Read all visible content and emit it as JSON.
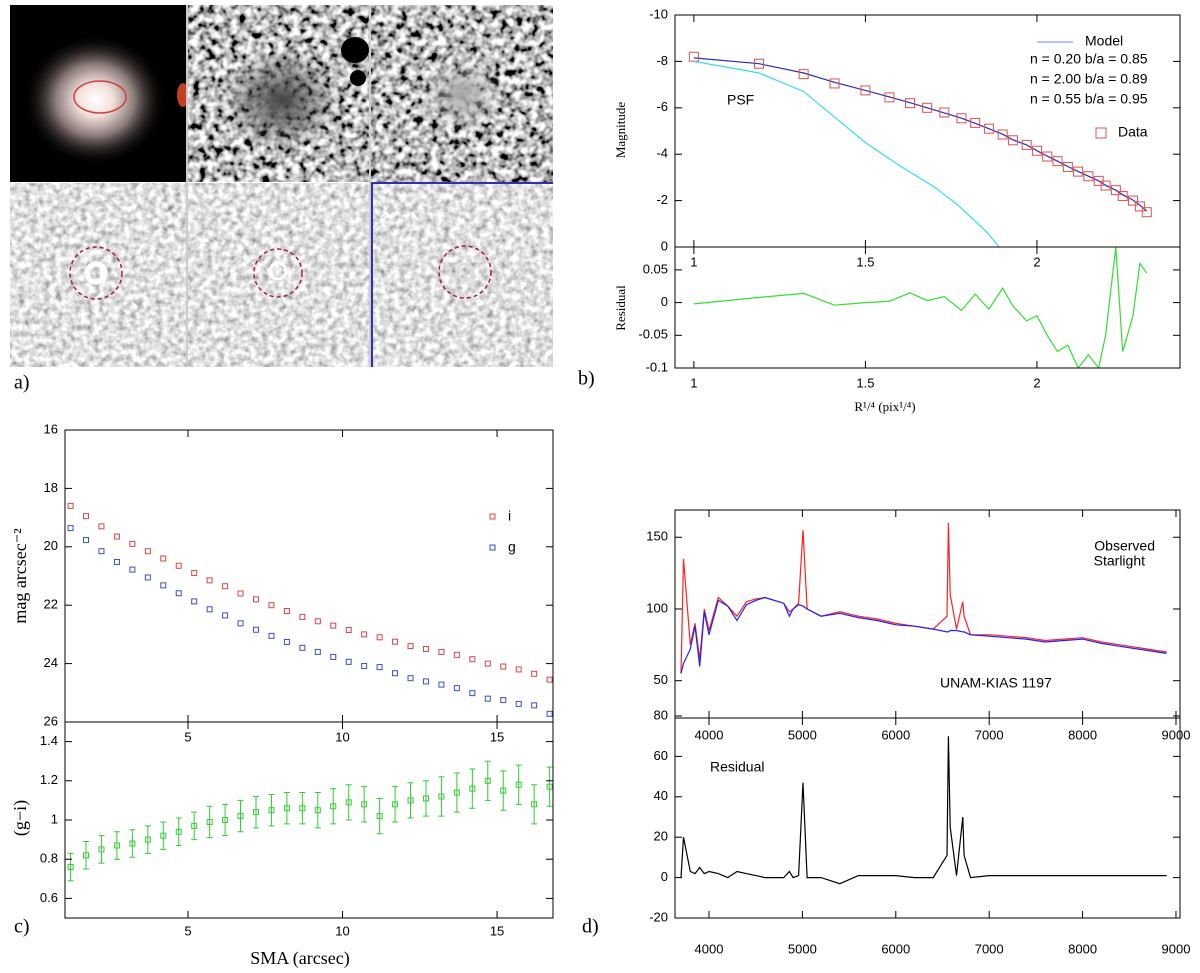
{
  "images": {
    "panel_label": "a)"
  },
  "chart_data": [
    {
      "type": "line",
      "panel_label": "b)",
      "ylabel": "Magnitude",
      "xlim": [
        0.945,
        2.417
      ],
      "xticks": [
        1,
        1.5,
        2
      ],
      "ylim": [
        0,
        -10
      ],
      "yticks": [
        0,
        -2,
        -4,
        -6,
        -8,
        -10
      ],
      "x": [
        1,
        1.19,
        1.32,
        1.41,
        1.5,
        1.57,
        1.63,
        1.68,
        1.73,
        1.78,
        1.82,
        1.86,
        1.9,
        1.93,
        1.97,
        2.0,
        2.03,
        2.06,
        2.09,
        2.12,
        2.15,
        2.18,
        2.2,
        2.23,
        2.25,
        2.28,
        2.3,
        2.32
      ],
      "series": [
        {
          "name": "Model",
          "color": "#2c2cb4",
          "style": "line",
          "values": [
            -8.15,
            -7.9,
            -7.5,
            -7.1,
            -6.75,
            -6.47,
            -6.22,
            -6.0,
            -5.78,
            -5.55,
            -5.33,
            -5.1,
            -4.86,
            -4.62,
            -4.4,
            -4.15,
            -3.92,
            -3.7,
            -3.47,
            -3.26,
            -3.05,
            -2.85,
            -2.66,
            -2.45,
            -2.25,
            -2.02,
            -1.8,
            -1.55
          ]
        },
        {
          "name": "Data",
          "color": "#e05050",
          "style": "markers",
          "values": [
            -8.2,
            -7.9,
            -7.45,
            -7.05,
            -6.75,
            -6.45,
            -6.2,
            -6.0,
            -5.8,
            -5.55,
            -5.35,
            -5.1,
            -4.85,
            -4.6,
            -4.4,
            -4.15,
            -3.9,
            -3.7,
            -3.45,
            -3.25,
            -3.05,
            -2.85,
            -2.65,
            -2.45,
            -2.2,
            -2.0,
            -1.75,
            -1.5
          ]
        },
        {
          "name": "PSF",
          "color": "#33ddee",
          "style": "line",
          "x": [
            1,
            1.19,
            1.32,
            1.41,
            1.5,
            1.6,
            1.7,
            1.77,
            1.85,
            1.89
          ],
          "values": [
            -8.0,
            -7.5,
            -6.7,
            -5.6,
            -4.5,
            -3.5,
            -2.6,
            -1.8,
            -0.7,
            0
          ]
        }
      ],
      "annotations": [
        {
          "text": "n = 0.20 b/a = 0.85",
          "color": "#1a1aa8"
        },
        {
          "text": "n = 2.00 b/a = 0.89",
          "color": "#1a1aa8"
        },
        {
          "text": "n = 0.55 b/a = 0.95",
          "color": "#1a1aa8"
        }
      ]
    },
    {
      "type": "line",
      "ylabel": "Residual",
      "xlabel": "R¹/⁴ (pix¹/⁴)",
      "xlim": [
        0.945,
        2.417
      ],
      "xticks": [
        1,
        1.5,
        2
      ],
      "ylim": [
        -0.1,
        0.085
      ],
      "yticks": [
        -0.1,
        -0.05,
        0,
        0.05
      ],
      "x": [
        1,
        1.19,
        1.32,
        1.41,
        1.5,
        1.57,
        1.63,
        1.68,
        1.73,
        1.78,
        1.82,
        1.86,
        1.9,
        1.93,
        1.97,
        2.0,
        2.03,
        2.06,
        2.09,
        2.12,
        2.15,
        2.18,
        2.2,
        2.23,
        2.25,
        2.28,
        2.3,
        2.32
      ],
      "series": [
        {
          "color": "#33dd33",
          "style": "line",
          "values": [
            -0.002,
            0.008,
            0.014,
            -0.004,
            0,
            0.002,
            0.015,
            0.003,
            0.009,
            -0.012,
            0.013,
            -0.01,
            0.022,
            -0.005,
            -0.028,
            -0.02,
            -0.05,
            -0.075,
            -0.065,
            -0.1,
            -0.08,
            -0.1,
            -0.05,
            0.085,
            -0.075,
            -0.02,
            0.06,
            0.045
          ]
        }
      ]
    },
    {
      "type": "scatter",
      "panel_label": "c)",
      "ylabel": "mag arcsec⁻²",
      "xlim": [
        1.02,
        16.81
      ],
      "xticks": [
        5,
        10,
        15
      ],
      "ylim": [
        26,
        16
      ],
      "yticks": [
        16,
        18,
        20,
        22,
        24,
        26
      ],
      "x": [
        1.2,
        1.7,
        2.2,
        2.7,
        3.2,
        3.7,
        4.2,
        4.7,
        5.2,
        5.7,
        6.2,
        6.7,
        7.2,
        7.7,
        8.2,
        8.7,
        9.2,
        9.7,
        10.2,
        10.7,
        11.2,
        11.7,
        12.2,
        12.7,
        13.2,
        13.7,
        14.2,
        14.7,
        15.2,
        15.7,
        16.2,
        16.7
      ],
      "series": [
        {
          "name": "i",
          "color": "#d9453f",
          "values": [
            18.6,
            18.95,
            19.3,
            19.65,
            19.9,
            20.15,
            20.4,
            20.65,
            20.9,
            21.15,
            21.35,
            21.6,
            21.8,
            22.0,
            22.2,
            22.4,
            22.55,
            22.7,
            22.85,
            23.0,
            23.1,
            23.25,
            23.4,
            23.5,
            23.6,
            23.7,
            23.85,
            24.0,
            24.1,
            24.2,
            24.35,
            24.55
          ]
        },
        {
          "name": "g",
          "color": "#3b4fc8",
          "values": [
            19.36,
            19.77,
            20.15,
            20.52,
            20.78,
            21.05,
            21.32,
            21.59,
            21.87,
            22.14,
            22.35,
            22.62,
            22.84,
            23.05,
            23.26,
            23.46,
            23.6,
            23.77,
            23.94,
            24.08,
            24.12,
            24.33,
            24.5,
            24.61,
            24.72,
            24.84,
            25.01,
            25.2,
            25.25,
            25.38,
            25.43,
            25.72
          ]
        }
      ]
    },
    {
      "type": "errorbar",
      "xlabel": "SMA (arcsec)",
      "ylabel": "(g−i)",
      "xlim": [
        1.02,
        16.81
      ],
      "xticks": [
        5,
        10,
        15
      ],
      "ylim": [
        0.5,
        1.5
      ],
      "yticks": [
        0.6,
        0.8,
        1,
        1.2,
        1.4
      ],
      "x": [
        1.2,
        1.7,
        2.2,
        2.7,
        3.2,
        3.7,
        4.2,
        4.7,
        5.2,
        5.7,
        6.2,
        6.7,
        7.2,
        7.7,
        8.2,
        8.7,
        9.2,
        9.7,
        10.2,
        10.7,
        11.2,
        11.7,
        12.2,
        12.7,
        13.2,
        13.7,
        14.2,
        14.7,
        15.2,
        15.7,
        16.2,
        16.7
      ],
      "color": "#33cc33",
      "values": [
        0.76,
        0.82,
        0.85,
        0.87,
        0.88,
        0.9,
        0.92,
        0.94,
        0.97,
        0.99,
        1.0,
        1.02,
        1.04,
        1.05,
        1.06,
        1.06,
        1.05,
        1.07,
        1.09,
        1.08,
        1.02,
        1.08,
        1.1,
        1.11,
        1.12,
        1.14,
        1.16,
        1.2,
        1.15,
        1.18,
        1.08,
        1.17
      ],
      "errors": [
        0.07,
        0.07,
        0.07,
        0.07,
        0.07,
        0.07,
        0.07,
        0.07,
        0.07,
        0.08,
        0.08,
        0.08,
        0.08,
        0.08,
        0.08,
        0.08,
        0.09,
        0.09,
        0.09,
        0.09,
        0.09,
        0.09,
        0.09,
        0.09,
        0.1,
        0.1,
        0.1,
        0.1,
        0.1,
        0.1,
        0.1,
        0.1
      ]
    },
    {
      "type": "line",
      "panel_label": "d)",
      "xlim": [
        3636,
        9043
      ],
      "xticks": [
        4000,
        5000,
        6000,
        7000,
        8000,
        9000
      ],
      "ylim": [
        24,
        169
      ],
      "yticks": [
        50,
        100,
        150
      ],
      "x": [
        3700,
        3727,
        3800,
        3850,
        3900,
        3950,
        4000,
        4100,
        4200,
        4300,
        4400,
        4500,
        4600,
        4700,
        4800,
        4861,
        4900,
        4959,
        5007,
        5050,
        5200,
        5400,
        5600,
        5800,
        6000,
        6200,
        6400,
        6548,
        6563,
        6583,
        6650,
        6717,
        6731,
        6800,
        7000,
        7200,
        7400,
        7600,
        7800,
        8000,
        8200,
        8400,
        8600,
        8800,
        8900
      ],
      "series": [
        {
          "name": "Observed",
          "color": "#ff2020",
          "style": "line",
          "values": [
            55,
            135,
            75,
            90,
            65,
            100,
            85,
            108,
            102,
            95,
            105,
            107,
            108,
            106,
            104,
            98,
            100,
            104,
            155,
            100,
            95,
            98,
            95,
            93,
            90,
            88,
            86,
            95,
            160,
            110,
            86,
            105,
            95,
            82,
            82,
            81,
            80,
            78,
            79,
            80,
            77,
            75,
            73,
            71,
            70
          ]
        },
        {
          "name": "Starlight",
          "color": "#2020ff",
          "style": "line",
          "values": [
            55,
            62,
            72,
            88,
            60,
            98,
            82,
            106,
            102,
            92,
            103,
            106,
            108,
            106,
            104,
            95,
            100,
            103,
            102,
            100,
            95,
            97,
            94,
            92,
            89,
            88,
            86,
            84,
            84,
            85,
            85,
            84,
            84,
            82,
            81,
            80,
            79,
            77,
            78,
            79,
            76,
            74,
            72,
            70,
            69
          ]
        }
      ],
      "annotations": [
        {
          "text": "UNAM-KIAS 1197",
          "color": "#000000"
        }
      ]
    },
    {
      "type": "line",
      "xlim": [
        3636,
        9043
      ],
      "xticks": [
        4000,
        5000,
        6000,
        7000,
        8000,
        9000
      ],
      "ylim": [
        -20,
        79
      ],
      "yticks": [
        -20,
        0,
        20,
        40,
        60,
        80
      ],
      "x": [
        3700,
        3727,
        3800,
        3850,
        3900,
        3950,
        4000,
        4100,
        4200,
        4300,
        4400,
        4500,
        4600,
        4700,
        4800,
        4861,
        4900,
        4959,
        5007,
        5050,
        5200,
        5400,
        5600,
        5800,
        6000,
        6200,
        6400,
        6548,
        6563,
        6583,
        6650,
        6717,
        6731,
        6800,
        7000,
        7200,
        7400,
        7600,
        7800,
        8000,
        8200,
        8400,
        8600,
        8800,
        8900
      ],
      "series": [
        {
          "color": "#000000",
          "style": "line",
          "values": [
            0,
            20,
            3,
            2,
            5,
            2,
            3,
            2,
            0,
            3,
            2,
            1,
            0,
            0,
            0,
            3,
            0,
            1,
            47,
            0,
            0,
            -3,
            1,
            1,
            1,
            0,
            0,
            11,
            70,
            25,
            1,
            30,
            11,
            0,
            1,
            1,
            1,
            1,
            1,
            1,
            1,
            1,
            1,
            1,
            1
          ]
        }
      ],
      "annotations": [
        {
          "text": "Residual",
          "color": "#000000"
        }
      ]
    }
  ]
}
